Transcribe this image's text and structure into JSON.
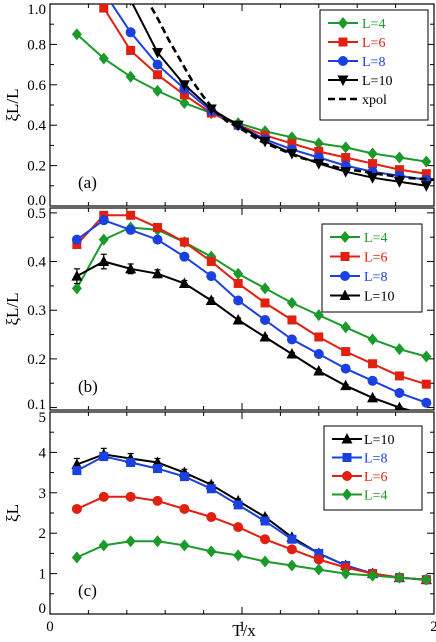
{
  "figure": {
    "xlabel": "T/x"
  },
  "chart_data": [
    {
      "type": "line",
      "panel_label": "(a)",
      "ylabel": "ξL/L",
      "xlim": [
        0,
        2
      ],
      "ylim": [
        0.0,
        1.0
      ],
      "yticks": [
        0.0,
        0.2,
        0.4,
        0.6,
        0.8,
        1.0
      ],
      "ytick_labels": [
        "0.0",
        "0.2",
        "0.4",
        "0.6",
        "0.8",
        "1.0"
      ],
      "legend_position": "top-right",
      "series": [
        {
          "name": "L=4",
          "color": "#1a9a2a",
          "marker": "diamond",
          "x": [
            0.14,
            0.28,
            0.42,
            0.56,
            0.7,
            0.84,
            0.98,
            1.12,
            1.26,
            1.4,
            1.54,
            1.68,
            1.82,
            1.96
          ],
          "y": [
            0.85,
            0.73,
            0.64,
            0.57,
            0.51,
            0.46,
            0.41,
            0.37,
            0.34,
            0.31,
            0.29,
            0.26,
            0.24,
            0.22
          ]
        },
        {
          "name": "L=6",
          "color": "#e02010",
          "marker": "square",
          "x": [
            0.28,
            0.42,
            0.56,
            0.7,
            0.84,
            0.98,
            1.12,
            1.26,
            1.4,
            1.54,
            1.68,
            1.82,
            1.96
          ],
          "y": [
            0.98,
            0.77,
            0.65,
            0.55,
            0.46,
            0.4,
            0.35,
            0.31,
            0.27,
            0.24,
            0.21,
            0.18,
            0.16
          ]
        },
        {
          "name": "L=8",
          "color": "#1a40e0",
          "marker": "circle",
          "x": [
            0.14,
            0.28,
            0.42,
            0.56,
            0.7,
            0.84,
            0.98,
            1.12,
            1.26,
            1.4,
            1.54,
            1.68,
            1.82,
            1.96
          ],
          "y": [
            1.1,
            1.06,
            0.86,
            0.7,
            0.58,
            0.47,
            0.4,
            0.33,
            0.28,
            0.24,
            0.2,
            0.17,
            0.15,
            0.13
          ]
        },
        {
          "name": "L=10",
          "color": "#000000",
          "marker": "triangle-down",
          "x": [
            0.42,
            0.56,
            0.7,
            0.84,
            0.98,
            1.12,
            1.26,
            1.4,
            1.54,
            1.68,
            1.82,
            1.96
          ],
          "y": [
            1.02,
            0.76,
            0.6,
            0.48,
            0.4,
            0.32,
            0.26,
            0.21,
            0.17,
            0.14,
            0.12,
            0.1
          ]
        },
        {
          "name": "xpol",
          "color": "#000000",
          "marker": "none",
          "dashed": true,
          "x": [
            0.5,
            0.56,
            0.62,
            0.68,
            0.74,
            0.8,
            0.86,
            0.92,
            0.98,
            1.1,
            1.3,
            1.5,
            1.7,
            1.85,
            2.0
          ],
          "y": [
            1.03,
            0.93,
            0.82,
            0.72,
            0.62,
            0.54,
            0.47,
            0.42,
            0.39,
            0.32,
            0.24,
            0.19,
            0.16,
            0.14,
            0.13
          ]
        }
      ]
    },
    {
      "type": "line",
      "panel_label": "(b)",
      "ylabel": "ξL/L",
      "xlim": [
        0,
        2
      ],
      "ylim": [
        0.095,
        0.51
      ],
      "yticks": [
        0.1,
        0.2,
        0.3,
        0.4,
        0.5
      ],
      "ytick_labels": [
        "0.1",
        "0.2",
        "0.3",
        "0.4",
        "0.5"
      ],
      "legend_position": "top-right",
      "series": [
        {
          "name": "L=4",
          "color": "#1a9a2a",
          "marker": "diamond",
          "x": [
            0.14,
            0.28,
            0.42,
            0.56,
            0.7,
            0.84,
            0.98,
            1.12,
            1.26,
            1.4,
            1.54,
            1.68,
            1.82,
            1.96
          ],
          "y": [
            0.345,
            0.445,
            0.47,
            0.465,
            0.44,
            0.41,
            0.375,
            0.345,
            0.315,
            0.29,
            0.265,
            0.24,
            0.22,
            0.205
          ]
        },
        {
          "name": "L=6",
          "color": "#e02010",
          "marker": "square",
          "x": [
            0.14,
            0.28,
            0.42,
            0.56,
            0.7,
            0.84,
            0.98,
            1.12,
            1.26,
            1.4,
            1.54,
            1.68,
            1.82,
            1.96
          ],
          "y": [
            0.435,
            0.495,
            0.495,
            0.47,
            0.44,
            0.4,
            0.355,
            0.315,
            0.28,
            0.245,
            0.215,
            0.19,
            0.165,
            0.148
          ]
        },
        {
          "name": "L=8",
          "color": "#1a40e0",
          "marker": "circle",
          "x": [
            0.14,
            0.28,
            0.42,
            0.56,
            0.7,
            0.84,
            0.98,
            1.12,
            1.26,
            1.4,
            1.54,
            1.68,
            1.82,
            1.96
          ],
          "y": [
            0.445,
            0.485,
            0.465,
            0.445,
            0.41,
            0.37,
            0.32,
            0.28,
            0.24,
            0.21,
            0.18,
            0.155,
            0.13,
            0.11
          ]
        },
        {
          "name": "L=10",
          "color": "#000000",
          "marker": "triangle-up",
          "x": [
            0.14,
            0.28,
            0.42,
            0.56,
            0.7,
            0.84,
            0.98,
            1.12,
            1.26,
            1.4,
            1.54,
            1.68,
            1.82,
            1.96
          ],
          "y": [
            0.37,
            0.4,
            0.385,
            0.375,
            0.355,
            0.32,
            0.28,
            0.245,
            0.21,
            0.175,
            0.145,
            0.12,
            0.1,
            0.085
          ],
          "yerr": [
            0.015,
            0.015,
            0.01,
            0.008,
            0.006,
            0.005,
            0.004,
            0.003,
            0.003,
            0.003,
            0.002,
            0.002,
            0.002,
            0.002
          ]
        }
      ]
    },
    {
      "type": "line",
      "panel_label": "(c)",
      "ylabel": "ξL",
      "xlim": [
        0,
        2
      ],
      "ylim": [
        0,
        5
      ],
      "yticks": [
        0,
        1,
        2,
        3,
        4,
        5
      ],
      "ytick_labels": [
        "0",
        "1",
        "2",
        "3",
        "4",
        "5"
      ],
      "xticks": [
        0,
        1,
        2
      ],
      "xtick_labels": [
        "0",
        "1",
        "2"
      ],
      "legend_position": "top-right",
      "series": [
        {
          "name": "L=10",
          "color": "#000000",
          "marker": "triangle-up",
          "x": [
            0.14,
            0.28,
            0.42,
            0.56,
            0.7,
            0.84,
            0.98,
            1.12,
            1.26,
            1.4,
            1.54,
            1.68,
            1.82,
            1.96
          ],
          "y": [
            3.7,
            3.95,
            3.85,
            3.75,
            3.5,
            3.2,
            2.8,
            2.4,
            1.9,
            1.5,
            1.2,
            1.0,
            0.9,
            0.85
          ],
          "yerr": [
            0.15,
            0.15,
            0.12,
            0.1,
            0.08,
            0.06,
            0.05,
            0.04,
            0.03,
            0.03,
            0.02,
            0.02,
            0.02,
            0.02
          ]
        },
        {
          "name": "L=8",
          "color": "#1a40e0",
          "marker": "square",
          "x": [
            0.14,
            0.28,
            0.42,
            0.56,
            0.7,
            0.84,
            0.98,
            1.12,
            1.26,
            1.4,
            1.54,
            1.68,
            1.82,
            1.96
          ],
          "y": [
            3.55,
            3.9,
            3.75,
            3.6,
            3.4,
            3.1,
            2.7,
            2.3,
            1.85,
            1.5,
            1.2,
            1.0,
            0.9,
            0.85
          ]
        },
        {
          "name": "L=6",
          "color": "#e02010",
          "marker": "circle",
          "x": [
            0.14,
            0.28,
            0.42,
            0.56,
            0.7,
            0.84,
            0.98,
            1.12,
            1.26,
            1.4,
            1.54,
            1.68,
            1.82,
            1.96
          ],
          "y": [
            2.6,
            2.9,
            2.9,
            2.8,
            2.6,
            2.4,
            2.15,
            1.85,
            1.6,
            1.35,
            1.15,
            1.0,
            0.9,
            0.85
          ]
        },
        {
          "name": "L=4",
          "color": "#1a9a2a",
          "marker": "diamond",
          "x": [
            0.14,
            0.28,
            0.42,
            0.56,
            0.7,
            0.84,
            0.98,
            1.12,
            1.26,
            1.4,
            1.54,
            1.68,
            1.82,
            1.96
          ],
          "y": [
            1.4,
            1.7,
            1.8,
            1.8,
            1.7,
            1.55,
            1.45,
            1.3,
            1.2,
            1.1,
            1.0,
            0.95,
            0.9,
            0.85
          ]
        }
      ]
    }
  ]
}
